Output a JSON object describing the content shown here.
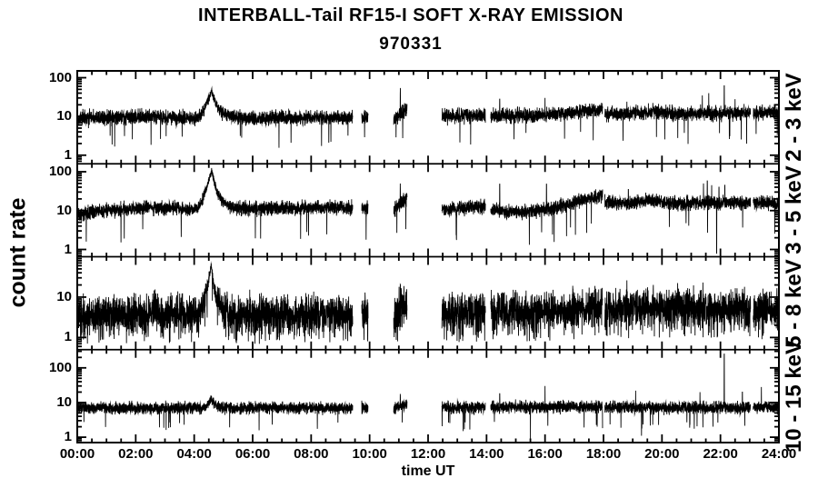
{
  "title": "INTERBALL-Tail RF15-I SOFT X-RAY EMISSION",
  "subtitle": "970331",
  "chart_data": {
    "type": "line",
    "title": "INTERBALL-Tail RF15-I SOFT X-RAY EMISSION",
    "subtitle": "970331",
    "xlabel": "time UT",
    "ylabel": "count rate",
    "x_range_hours": [
      0,
      24
    ],
    "x_major_tick_hours": 2,
    "x_minor_tick_hours": 0.5,
    "x_tick_labels": [
      "00:00",
      "02:00",
      "04:00",
      "06:00",
      "08:00",
      "10:00",
      "12:00",
      "14:00",
      "16:00",
      "18:00",
      "20:00",
      "22:00",
      "24:00"
    ],
    "grid": false,
    "legend": "none",
    "line_color": "#000000",
    "background_color": "#ffffff",
    "data_gaps_hours": [
      [
        9.42,
        9.73
      ],
      [
        9.95,
        10.82
      ],
      [
        11.28,
        12.47
      ],
      [
        13.96,
        14.14
      ],
      [
        17.97,
        18.04
      ],
      [
        23.03,
        23.12
      ]
    ],
    "noise_seed": 970331,
    "samples_per_hour": 250,
    "panels": [
      {
        "label": "2 - 3 keV",
        "y_min": 0.6,
        "y_max": 150,
        "y_tick_values": [
          1,
          10,
          100
        ],
        "y_tick_labels": [
          "1",
          "10",
          "100"
        ],
        "band_center_counts": [
          [
            0,
            9
          ],
          [
            2.5,
            10
          ],
          [
            4,
            9
          ],
          [
            9.42,
            9.5
          ],
          [
            12.47,
            10
          ],
          [
            13.96,
            10.5
          ],
          [
            14.14,
            10
          ],
          [
            16,
            11
          ],
          [
            17.5,
            14
          ],
          [
            17.97,
            16
          ],
          [
            18.04,
            11.5
          ],
          [
            19,
            12
          ],
          [
            19.7,
            13.5
          ],
          [
            20.3,
            12
          ],
          [
            24,
            12.5
          ]
        ],
        "noise_sigma_log10": 0.155,
        "down_spike_rate": 0.006,
        "down_spike_depth_log10": [
          0.45,
          0.35
        ],
        "flare": {
          "t_start": 4.08,
          "t_peak": 4.6,
          "peak_counts": 46,
          "decay_tau_hours": 0.22,
          "noise_reduction": 0.55
        },
        "burst": {
          "t0": 10.82,
          "t1": 11.28,
          "v0": 8,
          "v1": 16,
          "spike_t": 11.05,
          "spike_v": 32
        },
        "up_spikes": [
          [
            14.45,
            28
          ],
          [
            16.0,
            30
          ],
          [
            18.8,
            24
          ],
          [
            21.38,
            35
          ],
          [
            21.6,
            40
          ],
          [
            22.13,
            62
          ],
          [
            22.5,
            28
          ]
        ],
        "down_spikes": []
      },
      {
        "label": "3 - 5 keV",
        "y_min": 0.65,
        "y_max": 160,
        "y_tick_values": [
          1,
          10,
          100
        ],
        "y_tick_labels": [
          "1",
          "10",
          "100"
        ],
        "band_center_counts": [
          [
            0,
            8
          ],
          [
            1,
            10
          ],
          [
            2.5,
            12
          ],
          [
            3.5,
            11
          ],
          [
            9.42,
            12
          ],
          [
            12.47,
            11
          ],
          [
            13.96,
            13
          ],
          [
            14.14,
            10.5
          ],
          [
            15.2,
            9
          ],
          [
            16,
            10.5
          ],
          [
            17,
            16
          ],
          [
            17.97,
            26
          ],
          [
            18.04,
            17
          ],
          [
            18.8,
            15
          ],
          [
            19.6,
            19
          ],
          [
            20.4,
            15
          ],
          [
            21.5,
            16
          ],
          [
            24,
            16
          ]
        ],
        "noise_sigma_log10": 0.15,
        "down_spike_rate": 0.005,
        "down_spike_depth_log10": [
          0.5,
          0.4
        ],
        "flare": {
          "t_start": 4.05,
          "t_peak": 4.6,
          "peak_counts": 112,
          "decay_tau_hours": 0.22,
          "noise_reduction": 0.6
        },
        "burst": {
          "t0": 10.82,
          "t1": 11.28,
          "v0": 10,
          "v1": 22,
          "spike_t": 11.05,
          "spike_v": 40
        },
        "up_spikes": [
          [
            14.45,
            48
          ],
          [
            16.05,
            48
          ],
          [
            18.85,
            35
          ],
          [
            21.42,
            50
          ],
          [
            21.55,
            58
          ],
          [
            21.7,
            45
          ],
          [
            21.95,
            40
          ],
          [
            22.15,
            45
          ]
        ],
        "down_spikes": [
          [
            21.87,
            0.8
          ]
        ]
      },
      {
        "label": "5 - 8 keV",
        "y_min": 0.5,
        "y_max": 100,
        "y_tick_values": [
          1,
          10
        ],
        "y_tick_labels": [
          "1",
          "10"
        ],
        "band_center_counts": [
          [
            0,
            3.6
          ],
          [
            2.5,
            4.2
          ],
          [
            4,
            3.7
          ],
          [
            9.42,
            4
          ],
          [
            12.47,
            4.2
          ],
          [
            14.14,
            4.4
          ],
          [
            16,
            4.4
          ],
          [
            17.5,
            5.5
          ],
          [
            17.97,
            6.2
          ],
          [
            18.04,
            5
          ],
          [
            19.6,
            5.5
          ],
          [
            24,
            5
          ]
        ],
        "noise_sigma_log10": 0.38,
        "down_spike_rate": 0.08,
        "down_spike_depth_log10": [
          0.15,
          0.6
        ],
        "flare": {
          "t_start": 4.15,
          "t_peak": 4.58,
          "peak_counts": 62,
          "decay_tau_hours": 0.18,
          "noise_reduction": 0.88
        },
        "burst": {
          "t0": 10.82,
          "t1": 11.28,
          "v0": 3.2,
          "v1": 9,
          "spike_t": 11.05,
          "spike_v": 22
        },
        "up_spikes": [
          [
            18.8,
            26
          ],
          [
            21.4,
            23
          ]
        ],
        "down_spikes": []
      },
      {
        "label": "10 - 15 keV",
        "y_min": 0.7,
        "y_max": 335,
        "y_tick_values": [
          1,
          10,
          100
        ],
        "y_tick_labels": [
          "1",
          "10",
          "100"
        ],
        "band_center_counts": [
          [
            0,
            7
          ],
          [
            9.42,
            7
          ],
          [
            12.47,
            7.1
          ],
          [
            17.97,
            7.5
          ],
          [
            18.04,
            7.2
          ],
          [
            24,
            7.2
          ]
        ],
        "noise_sigma_log10": 0.14,
        "down_spike_rate": 0.006,
        "down_spike_depth_log10": [
          0.4,
          0.25
        ],
        "flare": {
          "t_start": 4.3,
          "t_peak": 4.58,
          "peak_counts": 12.5,
          "decay_tau_hours": 0.15,
          "noise_reduction": 0.2
        },
        "burst": {
          "t0": 10.82,
          "t1": 11.28,
          "v0": 7,
          "v1": 8.5,
          "spike_t": 11.05,
          "spike_v": 13
        },
        "up_spikes": [
          [
            14.45,
            18
          ],
          [
            16.0,
            30
          ],
          [
            19.1,
            22
          ],
          [
            21.3,
            20
          ],
          [
            22.13,
            250
          ],
          [
            22.75,
            20
          ],
          [
            23.4,
            28
          ]
        ],
        "down_spikes": [
          [
            13.2,
            1.5
          ],
          [
            15.5,
            0.9
          ],
          [
            19.3,
            1.1
          ]
        ]
      }
    ]
  }
}
